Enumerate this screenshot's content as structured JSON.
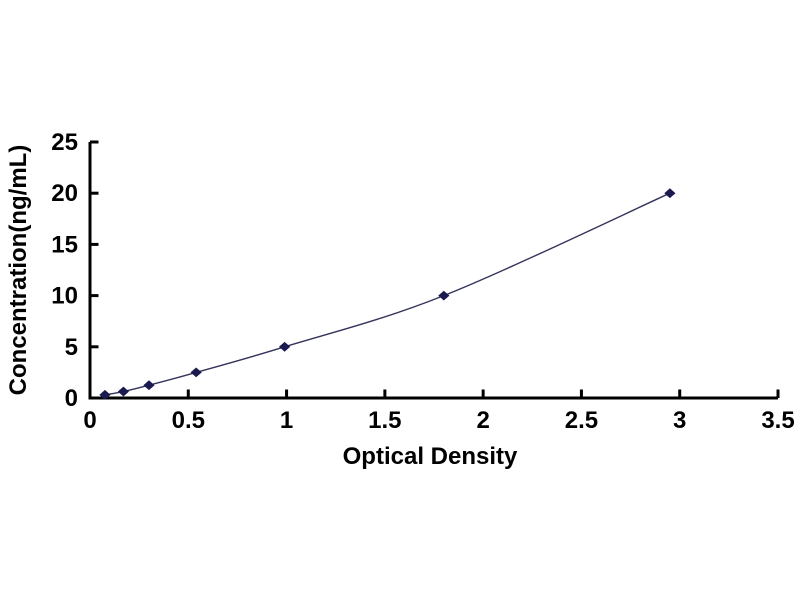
{
  "figure": {
    "background_color": "#ffffff",
    "description": "Standard curve scatter plot with smoothed line and diamond markers"
  },
  "chart_data": {
    "type": "scatter",
    "title": "",
    "xlabel": "Optical Density",
    "ylabel": "Concentration(ng/mL)",
    "x": [
      0.076,
      0.17,
      0.3,
      0.54,
      0.99,
      1.8,
      2.95
    ],
    "y": [
      0.31,
      0.63,
      1.25,
      2.5,
      5,
      10,
      20
    ],
    "xlim": [
      0,
      3.5
    ],
    "ylim": [
      0,
      25
    ],
    "x_ticks": [
      "0",
      "0.5",
      "1",
      "1.5",
      "2",
      "2.5",
      "3",
      "3.5"
    ],
    "y_ticks": [
      "0",
      "5",
      "10",
      "15",
      "20",
      "25"
    ],
    "grid": false,
    "legend_position": "none",
    "smooth_line": true,
    "marker_shape": "diamond",
    "line_color": "#34345c",
    "marker_color": "#1a1a50",
    "axis_color": "#000000",
    "tick_label_color": "#000000"
  }
}
